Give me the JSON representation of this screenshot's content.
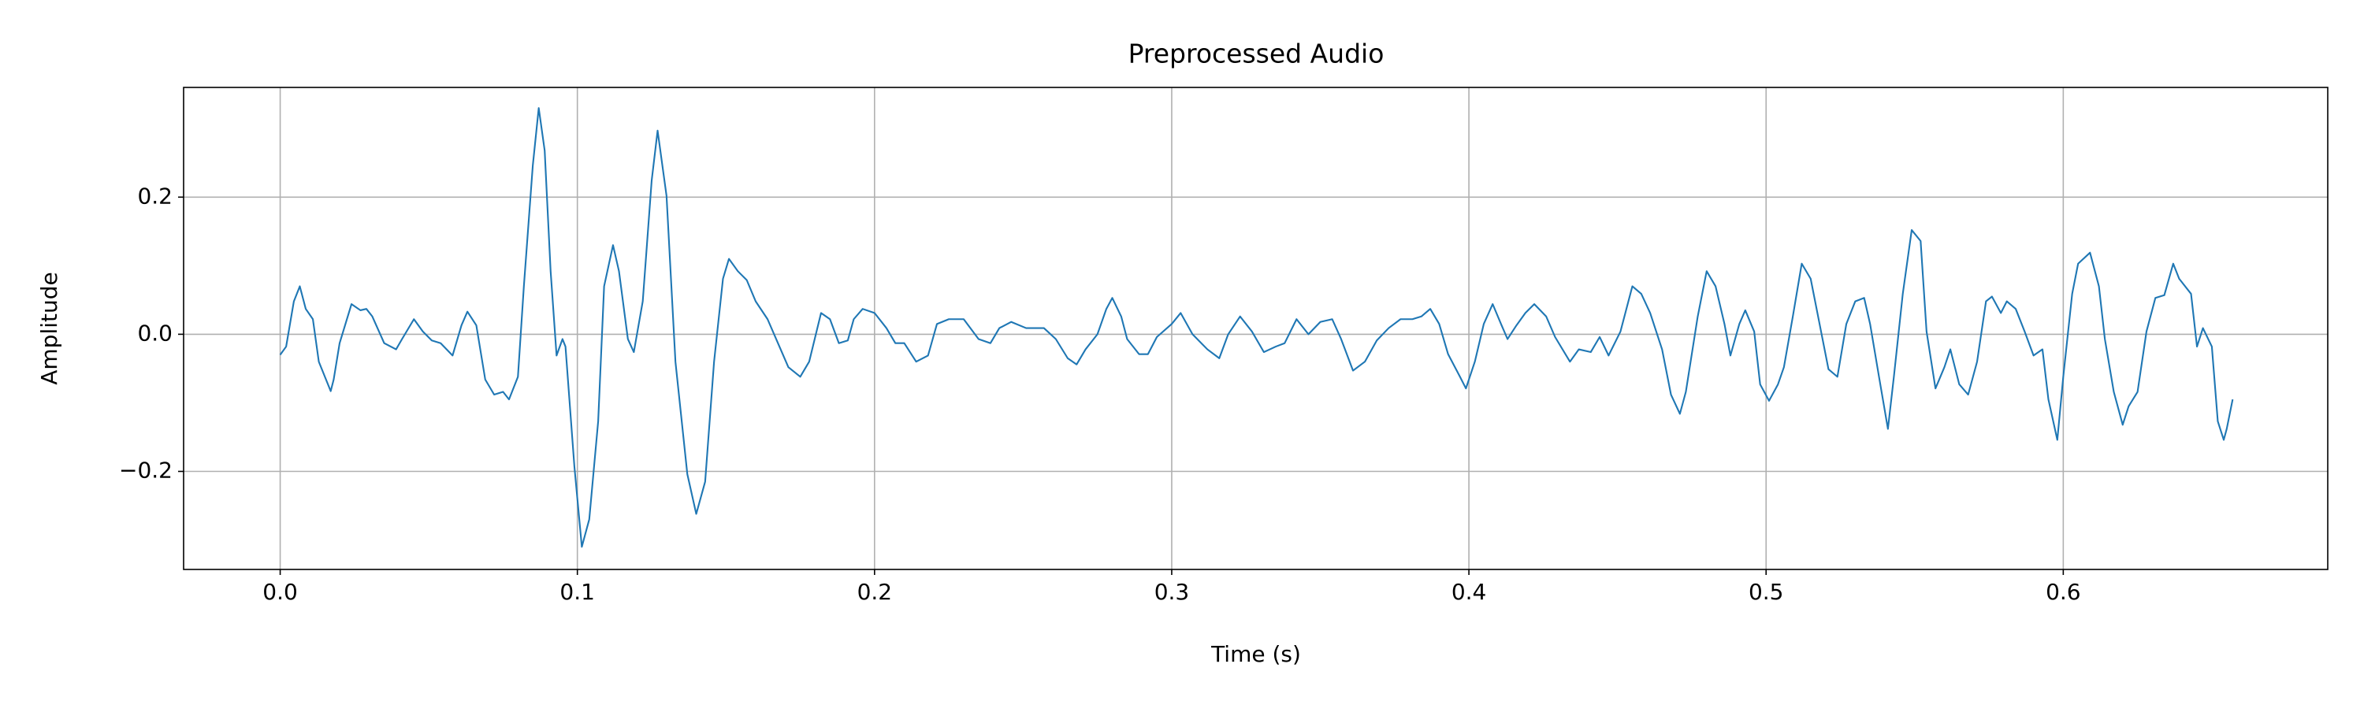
{
  "chart_data": {
    "type": "line",
    "title": "Preprocessed Audio",
    "xlabel": "Time (s)",
    "ylabel": "Amplitude",
    "color": "#1f77b4",
    "grid": true,
    "xlim": [
      -0.0325,
      0.689
    ],
    "ylim": [
      -0.343,
      0.36
    ],
    "xticks": [
      {
        "value": 0,
        "label": "0.0"
      },
      0.1,
      0.2,
      0.3,
      0.4,
      0.5,
      0.6
    ],
    "yticks": [
      {
        "value": -0.2,
        "label": "−0.2"
      },
      {
        "value": 0,
        "label": "0.0"
      },
      0.2
    ],
    "x": [
      0,
      0.002,
      0.0046,
      0.0066,
      0.0086,
      0.011,
      0.013,
      0.017,
      0.018,
      0.02,
      0.024,
      0.027,
      0.029,
      0.031,
      0.035,
      0.039,
      0.041,
      0.045,
      0.048,
      0.051,
      0.054,
      0.058,
      0.061,
      0.063,
      0.066,
      0.069,
      0.072,
      0.075,
      0.077,
      0.08,
      0.082,
      0.085,
      0.087,
      0.089,
      0.091,
      0.093,
      0.095,
      0.096,
      0.099,
      0.1015,
      0.104,
      0.107,
      0.109,
      0.112,
      0.114,
      0.117,
      0.119,
      0.122,
      0.125,
      0.127,
      0.13,
      0.133,
      0.137,
      0.14,
      0.143,
      0.146,
      0.149,
      0.151,
      0.154,
      0.157,
      0.16,
      0.164,
      0.168,
      0.171,
      0.175,
      0.178,
      0.182,
      0.185,
      0.188,
      0.191,
      0.193,
      0.196,
      0.2,
      0.204,
      0.207,
      0.21,
      0.214,
      0.218,
      0.221,
      0.225,
      0.23,
      0.235,
      0.239,
      0.242,
      0.246,
      0.251,
      0.257,
      0.261,
      0.265,
      0.268,
      0.271,
      0.275,
      0.278,
      0.28,
      0.283,
      0.285,
      0.289,
      0.292,
      0.295,
      0.3,
      0.303,
      0.307,
      0.312,
      0.316,
      0.319,
      0.323,
      0.327,
      0.331,
      0.335,
      0.338,
      0.342,
      0.346,
      0.35,
      0.354,
      0.357,
      0.361,
      0.365,
      0.369,
      0.373,
      0.377,
      0.381,
      0.384,
      0.387,
      0.39,
      0.393,
      0.397,
      0.399,
      0.402,
      0.405,
      0.408,
      0.411,
      0.413,
      0.416,
      0.419,
      0.422,
      0.426,
      0.429,
      0.434,
      0.437,
      0.441,
      0.444,
      0.447,
      0.451,
      0.455,
      0.458,
      0.461,
      0.465,
      0.468,
      0.471,
      0.473,
      0.477,
      0.48,
      0.483,
      0.486,
      0.488,
      0.491,
      0.493,
      0.496,
      0.498,
      0.501,
      0.504,
      0.506,
      0.509,
      0.512,
      0.515,
      0.518,
      0.521,
      0.524,
      0.527,
      0.53,
      0.533,
      0.535,
      0.538,
      0.541,
      0.543,
      0.546,
      0.549,
      0.552,
      0.554,
      0.557,
      0.56,
      0.562,
      0.565,
      0.568,
      0.571,
      0.574,
      0.576,
      0.579,
      0.581,
      0.584,
      0.587,
      0.59,
      0.593,
      0.595,
      0.598,
      0.6,
      0.603,
      0.605,
      0.609,
      0.612,
      0.614,
      0.617,
      0.62,
      0.622,
      0.625,
      0.628,
      0.631,
      0.634,
      0.637,
      0.639,
      0.643,
      0.645,
      0.647,
      0.65,
      0.652,
      0.654,
      0.655,
      0.657
    ],
    "values": [
      -0.03,
      -0.018,
      0.048,
      0.07,
      0.037,
      0.022,
      -0.04,
      -0.083,
      -0.066,
      -0.013,
      0.044,
      0.035,
      0.037,
      0.026,
      -0.013,
      -0.022,
      -0.007,
      0.022,
      0.004,
      -0.009,
      -0.013,
      -0.031,
      0.013,
      0.033,
      0.013,
      -0.066,
      -0.088,
      -0.084,
      -0.095,
      -0.062,
      0.07,
      0.246,
      0.33,
      0.268,
      0.092,
      -0.031,
      -0.007,
      -0.018,
      -0.193,
      -0.31,
      -0.27,
      -0.127,
      0.07,
      0.13,
      0.092,
      -0.007,
      -0.026,
      0.048,
      0.224,
      0.297,
      0.202,
      -0.04,
      -0.204,
      -0.262,
      -0.215,
      -0.04,
      0.081,
      0.11,
      0.092,
      0.079,
      0.048,
      0.022,
      -0.018,
      -0.048,
      -0.062,
      -0.04,
      0.031,
      0.022,
      -0.013,
      -0.009,
      0.022,
      0.037,
      0.031,
      0.009,
      -0.013,
      -0.013,
      -0.04,
      -0.031,
      0.015,
      0.022,
      0.022,
      -0.007,
      -0.013,
      0.009,
      0.018,
      0.009,
      0.009,
      -0.007,
      -0.035,
      -0.044,
      -0.022,
      0,
      0.037,
      0.053,
      0.026,
      -0.007,
      -0.029,
      -0.029,
      -0.004,
      0.015,
      0.031,
      0,
      -0.022,
      -0.035,
      0,
      0.026,
      0.004,
      -0.026,
      -0.018,
      -0.013,
      0.022,
      0,
      0.018,
      0.022,
      -0.007,
      -0.053,
      -0.04,
      -0.009,
      0.009,
      0.022,
      0.022,
      0.026,
      0.037,
      0.015,
      -0.029,
      -0.062,
      -0.079,
      -0.04,
      0.015,
      0.044,
      0.013,
      -0.007,
      0.013,
      0.031,
      0.044,
      0.026,
      -0.004,
      -0.04,
      -0.022,
      -0.026,
      -0.004,
      -0.031,
      0.004,
      0.07,
      0.059,
      0.031,
      -0.022,
      -0.088,
      -0.116,
      -0.084,
      0.026,
      0.092,
      0.07,
      0.015,
      -0.031,
      0.015,
      0.035,
      0.004,
      -0.073,
      -0.097,
      -0.073,
      -0.048,
      0.026,
      0.103,
      0.081,
      0.015,
      -0.051,
      -0.062,
      0.015,
      0.048,
      0.053,
      0.015,
      -0.062,
      -0.138,
      -0.062,
      0.059,
      0.152,
      0.136,
      0.004,
      -0.079,
      -0.048,
      -0.022,
      -0.073,
      -0.088,
      -0.04,
      0.048,
      0.055,
      0.031,
      0.048,
      0.037,
      0.004,
      -0.031,
      -0.022,
      -0.095,
      -0.154,
      -0.062,
      0.059,
      0.103,
      0.119,
      0.07,
      -0.007,
      -0.084,
      -0.132,
      -0.105,
      -0.084,
      0.004,
      0.053,
      0.057,
      0.103,
      0.081,
      0.059,
      -0.018,
      0.009,
      -0.018,
      -0.127,
      -0.154,
      -0.138,
      -0.095
    ]
  }
}
